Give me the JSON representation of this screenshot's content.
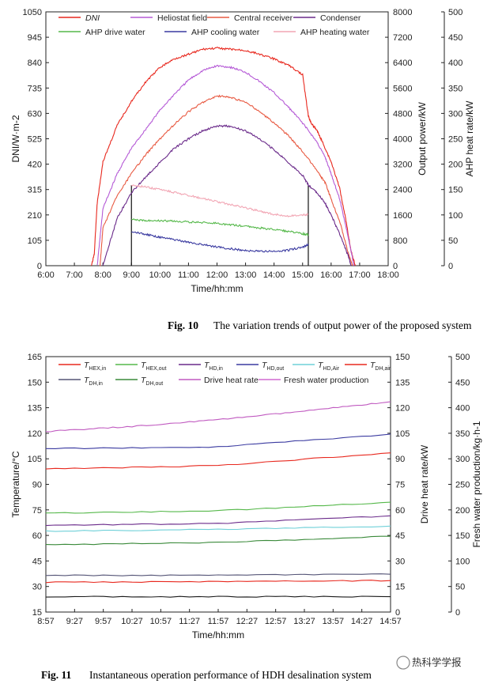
{
  "chart_data": [
    {
      "type": "line",
      "xlabel": "Time/hh:mm",
      "ylabel_left": "DNI/W·m-2",
      "ylabel_right1": "Output power/kW",
      "ylabel_right2": "AHP heat rate/kW",
      "x_ticks": [
        "6:00",
        "7:00",
        "8:00",
        "9:00",
        "10:00",
        "11:00",
        "12:00",
        "13:00",
        "14:00",
        "15:00",
        "16:00",
        "17:00",
        "18:00"
      ],
      "y_left": {
        "min": 0,
        "max": 1050,
        "ticks": [
          0,
          105,
          210,
          315,
          420,
          525,
          630,
          735,
          840,
          945,
          1050
        ]
      },
      "y_right1": {
        "min": 0,
        "max": 8000,
        "ticks": [
          0,
          800,
          1600,
          2400,
          3200,
          4000,
          4800,
          5600,
          6400,
          7200,
          8000
        ]
      },
      "y_right2": {
        "min": 0,
        "max": 500,
        "ticks": [
          0,
          50,
          100,
          150,
          200,
          250,
          300,
          350,
          400,
          450,
          500
        ]
      },
      "legend": [
        {
          "label": "DNI",
          "color": "#e8281e",
          "italic": true
        },
        {
          "label": "Heliostat field",
          "color": "#b55ad6"
        },
        {
          "label": "Central receiver",
          "color": "#e85a42"
        },
        {
          "label": "Condenser",
          "color": "#6a2a8a"
        },
        {
          "label": "AHP drive water",
          "color": "#55b84a"
        },
        {
          "label": "AHP cooling water",
          "color": "#3a3aa0"
        },
        {
          "label": "AHP heating water",
          "color": "#f2a6b4"
        }
      ],
      "vlines": [
        9.0,
        15.2
      ],
      "series": [
        {
          "name": "DNI",
          "axis": "left",
          "color": "#e8281e",
          "x": [
            7.6,
            7.7,
            7.8,
            8.0,
            8.5,
            9.0,
            9.5,
            10.0,
            10.5,
            11.0,
            11.5,
            12.0,
            12.5,
            13.0,
            13.5,
            14.0,
            14.5,
            15.0,
            15.2,
            15.3,
            15.5,
            15.7,
            16.0,
            16.3,
            16.5,
            16.7,
            16.85
          ],
          "y": [
            0,
            50,
            260,
            430,
            580,
            680,
            760,
            820,
            855,
            875,
            895,
            900,
            895,
            890,
            875,
            855,
            830,
            790,
            620,
            590,
            560,
            510,
            430,
            320,
            200,
            60,
            0
          ]
        },
        {
          "name": "Heliostat field",
          "axis": "right1",
          "color": "#b55ad6",
          "x": [
            7.8,
            8.0,
            8.5,
            9.0,
            9.5,
            10.0,
            10.5,
            11.0,
            11.5,
            12.0,
            12.5,
            13.0,
            13.5,
            14.0,
            14.5,
            15.0,
            15.5,
            15.8,
            16.0,
            16.3,
            16.6,
            16.8
          ],
          "y": [
            0,
            1800,
            2900,
            3700,
            4300,
            4900,
            5400,
            5850,
            6150,
            6300,
            6250,
            6100,
            5800,
            5450,
            5000,
            4500,
            3900,
            3400,
            2900,
            2100,
            900,
            0
          ]
        },
        {
          "name": "Central receiver",
          "axis": "right1",
          "color": "#e85a42",
          "x": [
            7.9,
            8.0,
            8.5,
            9.0,
            9.5,
            10.0,
            10.5,
            11.0,
            11.5,
            12.0,
            12.5,
            13.0,
            13.5,
            14.0,
            14.5,
            15.0,
            15.5,
            15.8,
            16.0,
            16.3,
            16.6,
            16.75
          ],
          "y": [
            0,
            1200,
            2200,
            2900,
            3500,
            4000,
            4450,
            4850,
            5150,
            5350,
            5300,
            5150,
            4850,
            4500,
            4100,
            3600,
            3000,
            2600,
            2100,
            1400,
            400,
            0
          ]
        },
        {
          "name": "Condenser",
          "axis": "right1",
          "color": "#6a2a8a",
          "x": [
            8.0,
            8.5,
            9.0,
            9.5,
            10.0,
            10.5,
            11.0,
            11.5,
            12.0,
            12.5,
            13.0,
            13.5,
            14.0,
            14.5,
            15.0,
            15.2,
            15.5,
            15.8,
            16.0,
            16.3,
            16.6,
            16.7
          ],
          "y": [
            0,
            1500,
            2300,
            2800,
            3250,
            3700,
            4000,
            4250,
            4400,
            4400,
            4250,
            4000,
            3650,
            3250,
            2850,
            2550,
            2300,
            1950,
            1600,
            1000,
            300,
            0
          ]
        },
        {
          "name": "AHP drive water",
          "axis": "right1",
          "color": "#55b84a",
          "x": [
            9.0,
            9.5,
            10.0,
            10.5,
            11.0,
            11.5,
            12.0,
            12.5,
            13.0,
            13.5,
            14.0,
            14.5,
            15.0,
            15.2
          ],
          "y": [
            1450,
            1430,
            1420,
            1400,
            1380,
            1360,
            1330,
            1290,
            1240,
            1190,
            1140,
            1080,
            1010,
            980
          ]
        },
        {
          "name": "AHP cooling water",
          "axis": "right1",
          "color": "#3a3aa0",
          "x": [
            9.0,
            9.5,
            10.0,
            10.5,
            11.0,
            11.5,
            12.0,
            12.5,
            13.0,
            13.5,
            14.0,
            14.5,
            15.0,
            15.2
          ],
          "y": [
            1080,
            990,
            900,
            820,
            740,
            660,
            590,
            530,
            480,
            450,
            450,
            490,
            590,
            660
          ]
        },
        {
          "name": "AHP heating water",
          "axis": "right1",
          "color": "#f2a6b4",
          "x": [
            9.0,
            9.5,
            10.0,
            10.5,
            11.0,
            11.5,
            12.0,
            12.5,
            13.0,
            13.5,
            14.0,
            14.5,
            15.0,
            15.2
          ],
          "y": [
            2540,
            2480,
            2400,
            2310,
            2220,
            2120,
            2020,
            1920,
            1820,
            1720,
            1620,
            1560,
            1600,
            1620
          ]
        }
      ]
    },
    {
      "type": "line",
      "xlabel": "Time/hh:mm",
      "ylabel_left": "Temperature/°C",
      "ylabel_right1": "Drive heat rate/kW",
      "ylabel_right2": "Fresh water production/kg·h-1",
      "x_ticks": [
        "8:57",
        "9:27",
        "9:57",
        "10:27",
        "10:57",
        "11:27",
        "11:57",
        "12:27",
        "12:57",
        "13:27",
        "13:57",
        "14:27",
        "14:57"
      ],
      "y_left": {
        "min": 15,
        "max": 165,
        "ticks": [
          15,
          30,
          45,
          60,
          75,
          90,
          105,
          120,
          135,
          150,
          165
        ]
      },
      "y_right1": {
        "min": 0,
        "max": 150,
        "ticks": [
          0,
          15,
          30,
          45,
          60,
          75,
          90,
          105,
          120,
          135,
          150
        ]
      },
      "y_right2": {
        "min": 0,
        "max": 500,
        "ticks": [
          0,
          50,
          100,
          150,
          200,
          250,
          300,
          350,
          400,
          450,
          500
        ]
      },
      "legend": [
        {
          "label": "T",
          "sub": "HEX,in",
          "color": "#e8281e"
        },
        {
          "label": "T",
          "sub": "HEX,out",
          "color": "#55b84a"
        },
        {
          "label": "T",
          "sub": "HD,in",
          "color": "#6a2a8a"
        },
        {
          "label": "T",
          "sub": "HD,out",
          "color": "#3a3aa0"
        },
        {
          "label": "T",
          "sub": "HD,Air",
          "color": "#6fd0d8"
        },
        {
          "label": "T",
          "sub": "DH,air",
          "color": "#e8281e"
        },
        {
          "label": "T",
          "sub": "DH,in",
          "color": "#555577"
        },
        {
          "label": "T",
          "sub": "DH,out",
          "color": "#3a8a3a"
        },
        {
          "label": "Drive heat rate",
          "color": "#c05ac0"
        },
        {
          "label": "Fresh water production",
          "color": "#d06ad0"
        }
      ],
      "series": [
        {
          "name": "T_HEX,in",
          "axis": "left",
          "color": "#e8281e",
          "x": [
            0,
            180,
            360
          ],
          "y": [
            99,
            101,
            108.5
          ]
        },
        {
          "name": "T_HEX,out",
          "axis": "left",
          "color": "#55b84a",
          "x": [
            0,
            180,
            360
          ],
          "y": [
            73,
            74.5,
            79.5
          ]
        },
        {
          "name": "T_HD,in",
          "axis": "left",
          "color": "#6a2a8a",
          "x": [
            0,
            180,
            360
          ],
          "y": [
            66,
            67,
            71.5
          ]
        },
        {
          "name": "T_HD,out",
          "axis": "left",
          "color": "#3a3aa0",
          "x": [
            0,
            180,
            360
          ],
          "y": [
            111,
            112,
            119.5
          ]
        },
        {
          "name": "T_HD,Air",
          "axis": "left",
          "color": "#6fd0d8",
          "x": [
            0,
            180,
            360
          ],
          "y": [
            62.5,
            63.5,
            65.5
          ]
        },
        {
          "name": "T_DH,air",
          "axis": "left",
          "color": "#e8281e",
          "x": [
            0,
            180,
            360
          ],
          "y": [
            32.5,
            32.8,
            33.5
          ]
        },
        {
          "name": "T_DH,in",
          "axis": "left",
          "color": "#555577",
          "x": [
            0,
            180,
            360
          ],
          "y": [
            36.5,
            36.6,
            37.2
          ]
        },
        {
          "name": "T_DH,out",
          "axis": "left",
          "color": "#3a8a3a",
          "x": [
            0,
            180,
            360
          ],
          "y": [
            54.5,
            55.8,
            59.5
          ]
        },
        {
          "name": "Drive heat rate",
          "axis": "right1",
          "color": "#1a1a1a",
          "x": [
            0,
            180,
            360
          ],
          "y": [
            9,
            9,
            9
          ]
        },
        {
          "name": "Fresh water production",
          "axis": "left",
          "color": "#c05ac0",
          "x": [
            0,
            90,
            180,
            270,
            360
          ],
          "y": [
            121,
            124,
            128,
            133,
            138.5
          ]
        }
      ]
    }
  ],
  "captions": {
    "fig10_num": "Fig. 10",
    "fig10_text": "The variation trends of output power of the proposed system",
    "fig11_num": "Fig. 11",
    "fig11_text": "Instantaneous operation performance of HDH desalination system"
  },
  "watermark": "热科学学报"
}
